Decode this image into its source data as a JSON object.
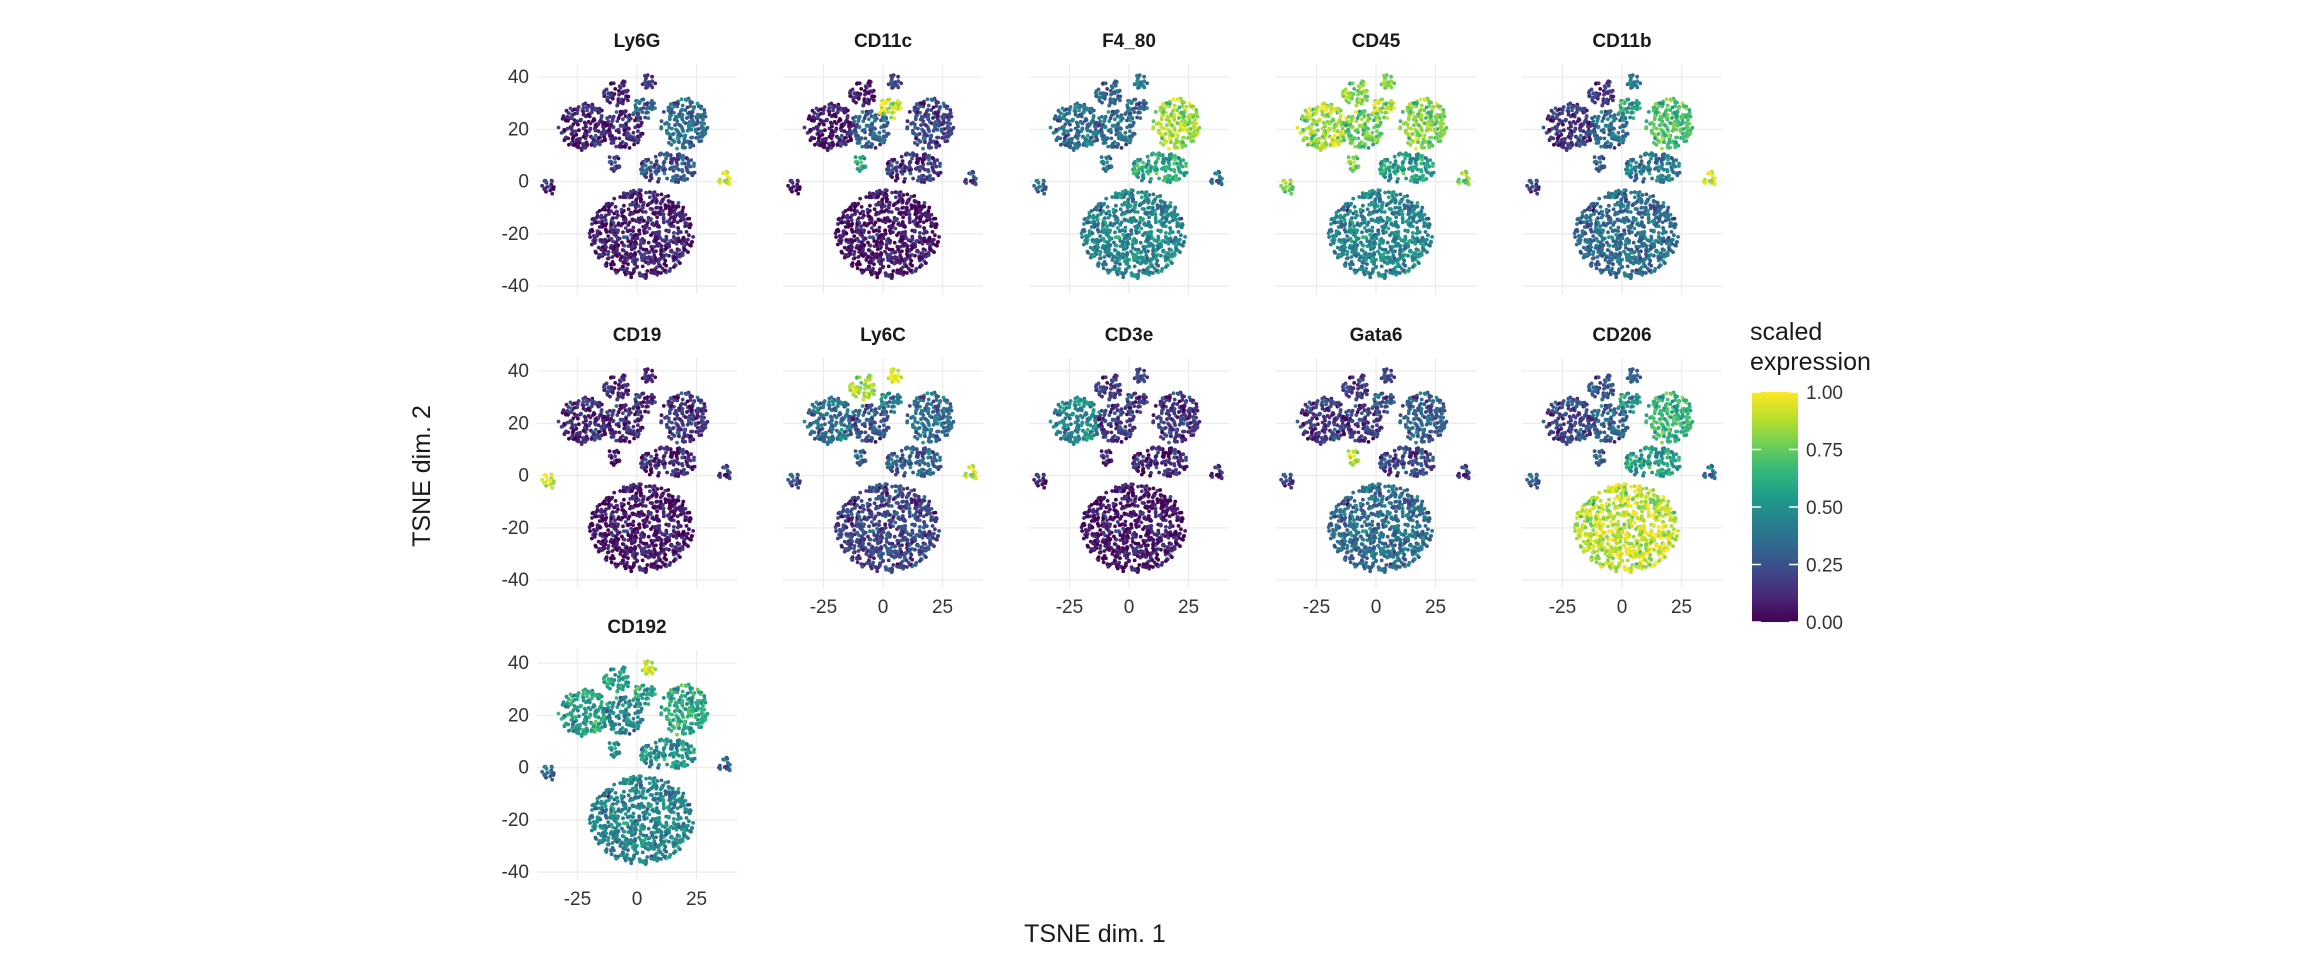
{
  "chart_data": {
    "type": "scatter",
    "subtype": "faceted t-SNE embedding colored by scaled marker expression",
    "xlabel": "TSNE dim. 1",
    "ylabel": "TSNE dim. 2",
    "xlim": [
      -42,
      42
    ],
    "ylim": [
      -43,
      45
    ],
    "x_ticks": [
      -25,
      0,
      25
    ],
    "x_tick_labels": [
      "-25",
      "0",
      "25"
    ],
    "y_ticks": [
      -40,
      -20,
      0,
      20,
      40
    ],
    "y_tick_labels": [
      "-40",
      "-20",
      "0",
      "20",
      "40"
    ],
    "grid": true,
    "facets": [
      {
        "name": "Ly6G"
      },
      {
        "name": "CD11c"
      },
      {
        "name": "F4_80"
      },
      {
        "name": "CD45"
      },
      {
        "name": "CD11b"
      },
      {
        "name": "CD19"
      },
      {
        "name": "Ly6C"
      },
      {
        "name": "CD3e"
      },
      {
        "name": "Gata6"
      },
      {
        "name": "CD206"
      },
      {
        "name": "CD192"
      }
    ],
    "legend": {
      "title_lines": [
        "scaled",
        "expression"
      ],
      "type": "colorbar",
      "colormap": "viridis",
      "range": [
        0,
        1
      ],
      "ticks": [
        1.0,
        0.75,
        0.5,
        0.25,
        0.0
      ],
      "tick_labels": [
        "1.00",
        "0.75",
        "0.50",
        "0.25",
        "0.00"
      ],
      "placement": "right"
    },
    "clusters": [
      {
        "id": "large_bottom",
        "center": [
          2,
          -20
        ],
        "radius": [
          22,
          17
        ]
      },
      {
        "id": "mid_right",
        "center": [
          13,
          5
        ],
        "radius": [
          12,
          6
        ]
      },
      {
        "id": "top_right",
        "center": [
          20,
          22
        ],
        "radius": [
          10,
          10
        ]
      },
      {
        "id": "upper_left",
        "center": [
          -22,
          21
        ],
        "radius": [
          11,
          9
        ]
      },
      {
        "id": "upper_mid",
        "center": [
          -5,
          20
        ],
        "radius": [
          8,
          8
        ]
      },
      {
        "id": "top_mid",
        "center": [
          -8,
          34
        ],
        "radius": [
          6,
          5
        ]
      },
      {
        "id": "top_small",
        "center": [
          5,
          38
        ],
        "radius": [
          3,
          3
        ]
      },
      {
        "id": "upper_small_a",
        "center": [
          3,
          28
        ],
        "radius": [
          5,
          4
        ]
      },
      {
        "id": "far_left",
        "center": [
          -37,
          -2
        ],
        "radius": [
          3,
          3
        ]
      },
      {
        "id": "far_right",
        "center": [
          37,
          1
        ],
        "radius": [
          3,
          3
        ]
      },
      {
        "id": "small_center",
        "center": [
          -10,
          7
        ],
        "radius": [
          3,
          3
        ]
      }
    ],
    "cluster_expression": {
      "Ly6G": {
        "large_bottom": 0.08,
        "mid_right": 0.25,
        "top_right": 0.35,
        "upper_left": 0.08,
        "upper_mid": 0.1,
        "top_mid": 0.08,
        "top_small": 0.15,
        "upper_small_a": 0.3,
        "far_left": 0.1,
        "far_right": 0.95,
        "small_center": 0.2
      },
      "CD11c": {
        "large_bottom": 0.05,
        "mid_right": 0.15,
        "top_right": 0.2,
        "upper_left": 0.05,
        "upper_mid": 0.3,
        "top_mid": 0.05,
        "top_small": 0.2,
        "upper_small_a": 0.9,
        "far_left": 0.05,
        "far_right": 0.2,
        "small_center": 0.6
      },
      "F4_80": {
        "large_bottom": 0.45,
        "mid_right": 0.6,
        "top_right": 0.85,
        "upper_left": 0.35,
        "upper_mid": 0.35,
        "top_mid": 0.3,
        "top_small": 0.4,
        "upper_small_a": 0.3,
        "far_left": 0.35,
        "far_right": 0.35,
        "small_center": 0.4
      },
      "CD45": {
        "large_bottom": 0.45,
        "mid_right": 0.55,
        "top_right": 0.8,
        "upper_left": 0.85,
        "upper_mid": 0.75,
        "top_mid": 0.8,
        "top_small": 0.8,
        "upper_small_a": 0.85,
        "far_left": 0.8,
        "far_right": 0.8,
        "small_center": 0.8
      },
      "CD11b": {
        "large_bottom": 0.35,
        "mid_right": 0.4,
        "top_right": 0.7,
        "upper_left": 0.15,
        "upper_mid": 0.35,
        "top_mid": 0.15,
        "top_small": 0.4,
        "upper_small_a": 0.55,
        "far_left": 0.2,
        "far_right": 0.95,
        "small_center": 0.3
      },
      "CD19": {
        "large_bottom": 0.05,
        "mid_right": 0.1,
        "top_right": 0.15,
        "upper_left": 0.1,
        "upper_mid": 0.1,
        "top_mid": 0.1,
        "top_small": 0.1,
        "upper_small_a": 0.1,
        "far_left": 0.95,
        "far_right": 0.15,
        "small_center": 0.05
      },
      "Ly6C": {
        "large_bottom": 0.2,
        "mid_right": 0.3,
        "top_right": 0.35,
        "upper_left": 0.35,
        "upper_mid": 0.25,
        "top_mid": 0.85,
        "top_small": 0.95,
        "upper_small_a": 0.4,
        "far_left": 0.25,
        "far_right": 0.9,
        "small_center": 0.3
      },
      "CD3e": {
        "large_bottom": 0.05,
        "mid_right": 0.1,
        "top_right": 0.15,
        "upper_left": 0.45,
        "upper_mid": 0.15,
        "top_mid": 0.15,
        "top_small": 0.2,
        "upper_small_a": 0.15,
        "far_left": 0.1,
        "far_right": 0.1,
        "small_center": 0.1
      },
      "Gata6": {
        "large_bottom": 0.35,
        "mid_right": 0.2,
        "top_right": 0.3,
        "upper_left": 0.15,
        "upper_mid": 0.15,
        "top_mid": 0.15,
        "top_small": 0.2,
        "upper_small_a": 0.25,
        "far_left": 0.2,
        "far_right": 0.15,
        "small_center": 0.9
      },
      "CD206": {
        "large_bottom": 0.9,
        "mid_right": 0.55,
        "top_right": 0.65,
        "upper_left": 0.2,
        "upper_mid": 0.3,
        "top_mid": 0.25,
        "top_small": 0.3,
        "upper_small_a": 0.5,
        "far_left": 0.3,
        "far_right": 0.35,
        "small_center": 0.3
      },
      "CD192": {
        "large_bottom": 0.45,
        "mid_right": 0.5,
        "top_right": 0.6,
        "upper_left": 0.55,
        "upper_mid": 0.45,
        "top_mid": 0.55,
        "top_small": 0.9,
        "upper_small_a": 0.55,
        "far_left": 0.35,
        "far_right": 0.3,
        "small_center": 0.5
      }
    }
  },
  "colors": {
    "viridis": [
      "#440154",
      "#482878",
      "#3e4989",
      "#31688e",
      "#26828e",
      "#1f9e89",
      "#35b779",
      "#6ece58",
      "#b5de2b",
      "#fde725"
    ],
    "grid": "#ebebeb",
    "text": "#1a1a1a"
  }
}
